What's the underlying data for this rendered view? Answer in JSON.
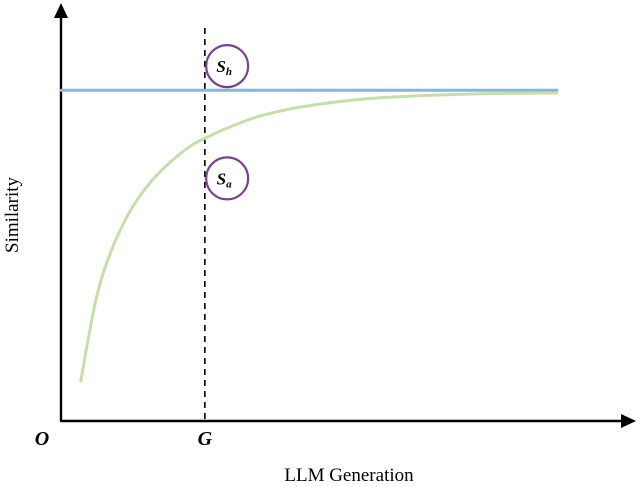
{
  "chart_data": {
    "type": "line",
    "xlabel": "LLM Generation",
    "ylabel": "Similarity",
    "xlim": [
      0,
      1
    ],
    "ylim": [
      0,
      1
    ],
    "x_ticks": [
      {
        "label": "O",
        "value": 0
      },
      {
        "label": "G",
        "value": 0.29
      }
    ],
    "vertical_marker": {
      "x": 0.29,
      "label": "G",
      "style": "dashed"
    },
    "grid": false,
    "series": [
      {
        "key": "human",
        "color": "#8ab4de",
        "x": [
          0,
          1
        ],
        "y": [
          0.825,
          0.825
        ]
      },
      {
        "key": "ai",
        "color": "#c5e0a5",
        "x": [
          0.04,
          0.07,
          0.1,
          0.14,
          0.18,
          0.22,
          0.26,
          0.29,
          0.34,
          0.4,
          0.47,
          0.55,
          0.63,
          0.72,
          0.81,
          0.9,
          1.0
        ],
        "y": [
          0.1,
          0.3,
          0.42,
          0.525,
          0.595,
          0.645,
          0.685,
          0.705,
          0.733,
          0.76,
          0.78,
          0.795,
          0.805,
          0.811,
          0.815,
          0.817,
          0.818
        ]
      }
    ],
    "annotations": [
      {
        "key": "human",
        "main": "S",
        "sub": "h",
        "color": "#7a3f98",
        "anchor_x": 0.335,
        "anchor_y": 0.885
      },
      {
        "key": "ai",
        "main": "S",
        "sub": "a",
        "color": "#7a3f98",
        "anchor_x": 0.335,
        "anchor_y": 0.605
      }
    ]
  }
}
